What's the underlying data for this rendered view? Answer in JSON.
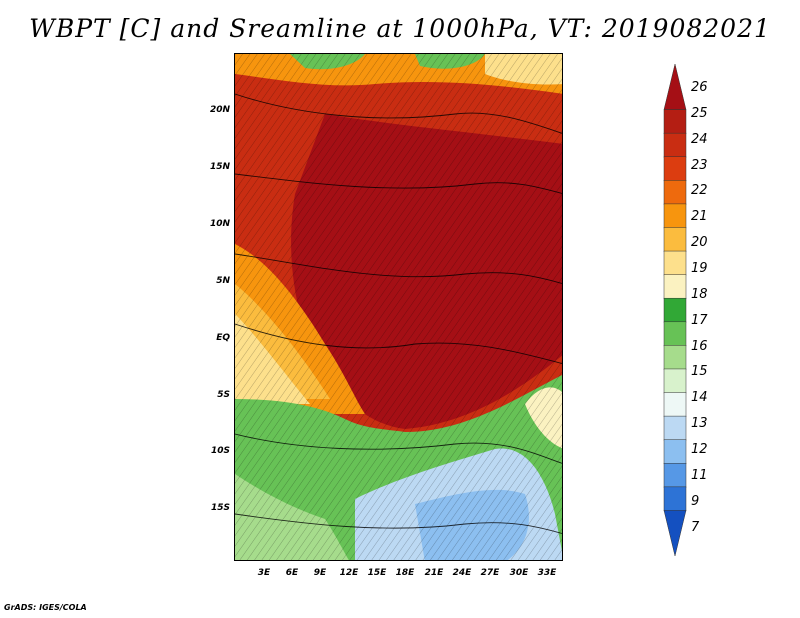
{
  "title": "WBPT [C] and Sreamline at 1000hPa, VT: 2019082021",
  "credit": "GrADS: IGES/COLA",
  "map": {
    "lat_labels": [
      "20N",
      "15N",
      "10N",
      "5N",
      "EQ",
      "5S",
      "10S",
      "15S"
    ],
    "lon_labels": [
      "3E",
      "6E",
      "9E",
      "12E",
      "15E",
      "18E",
      "21E",
      "24E",
      "27E",
      "30E",
      "33E"
    ]
  },
  "colorbar": {
    "levels": [
      "26",
      "25",
      "24",
      "23",
      "22",
      "21",
      "20",
      "19",
      "18",
      "17",
      "16",
      "15",
      "14",
      "13",
      "12",
      "11",
      "9",
      "7"
    ],
    "colors": [
      "#a50f15",
      "#b41e13",
      "#c92d12",
      "#dc3d10",
      "#ee6a0d",
      "#f7950e",
      "#fbbc3e",
      "#fde08c",
      "#fbf2c1",
      "#31a836",
      "#67c256",
      "#a6dc8c",
      "#d8f2cc",
      "#eef8f6",
      "#bcd9f3",
      "#8cbff0",
      "#5698e6",
      "#2d73d6",
      "#1450c0"
    ]
  }
}
